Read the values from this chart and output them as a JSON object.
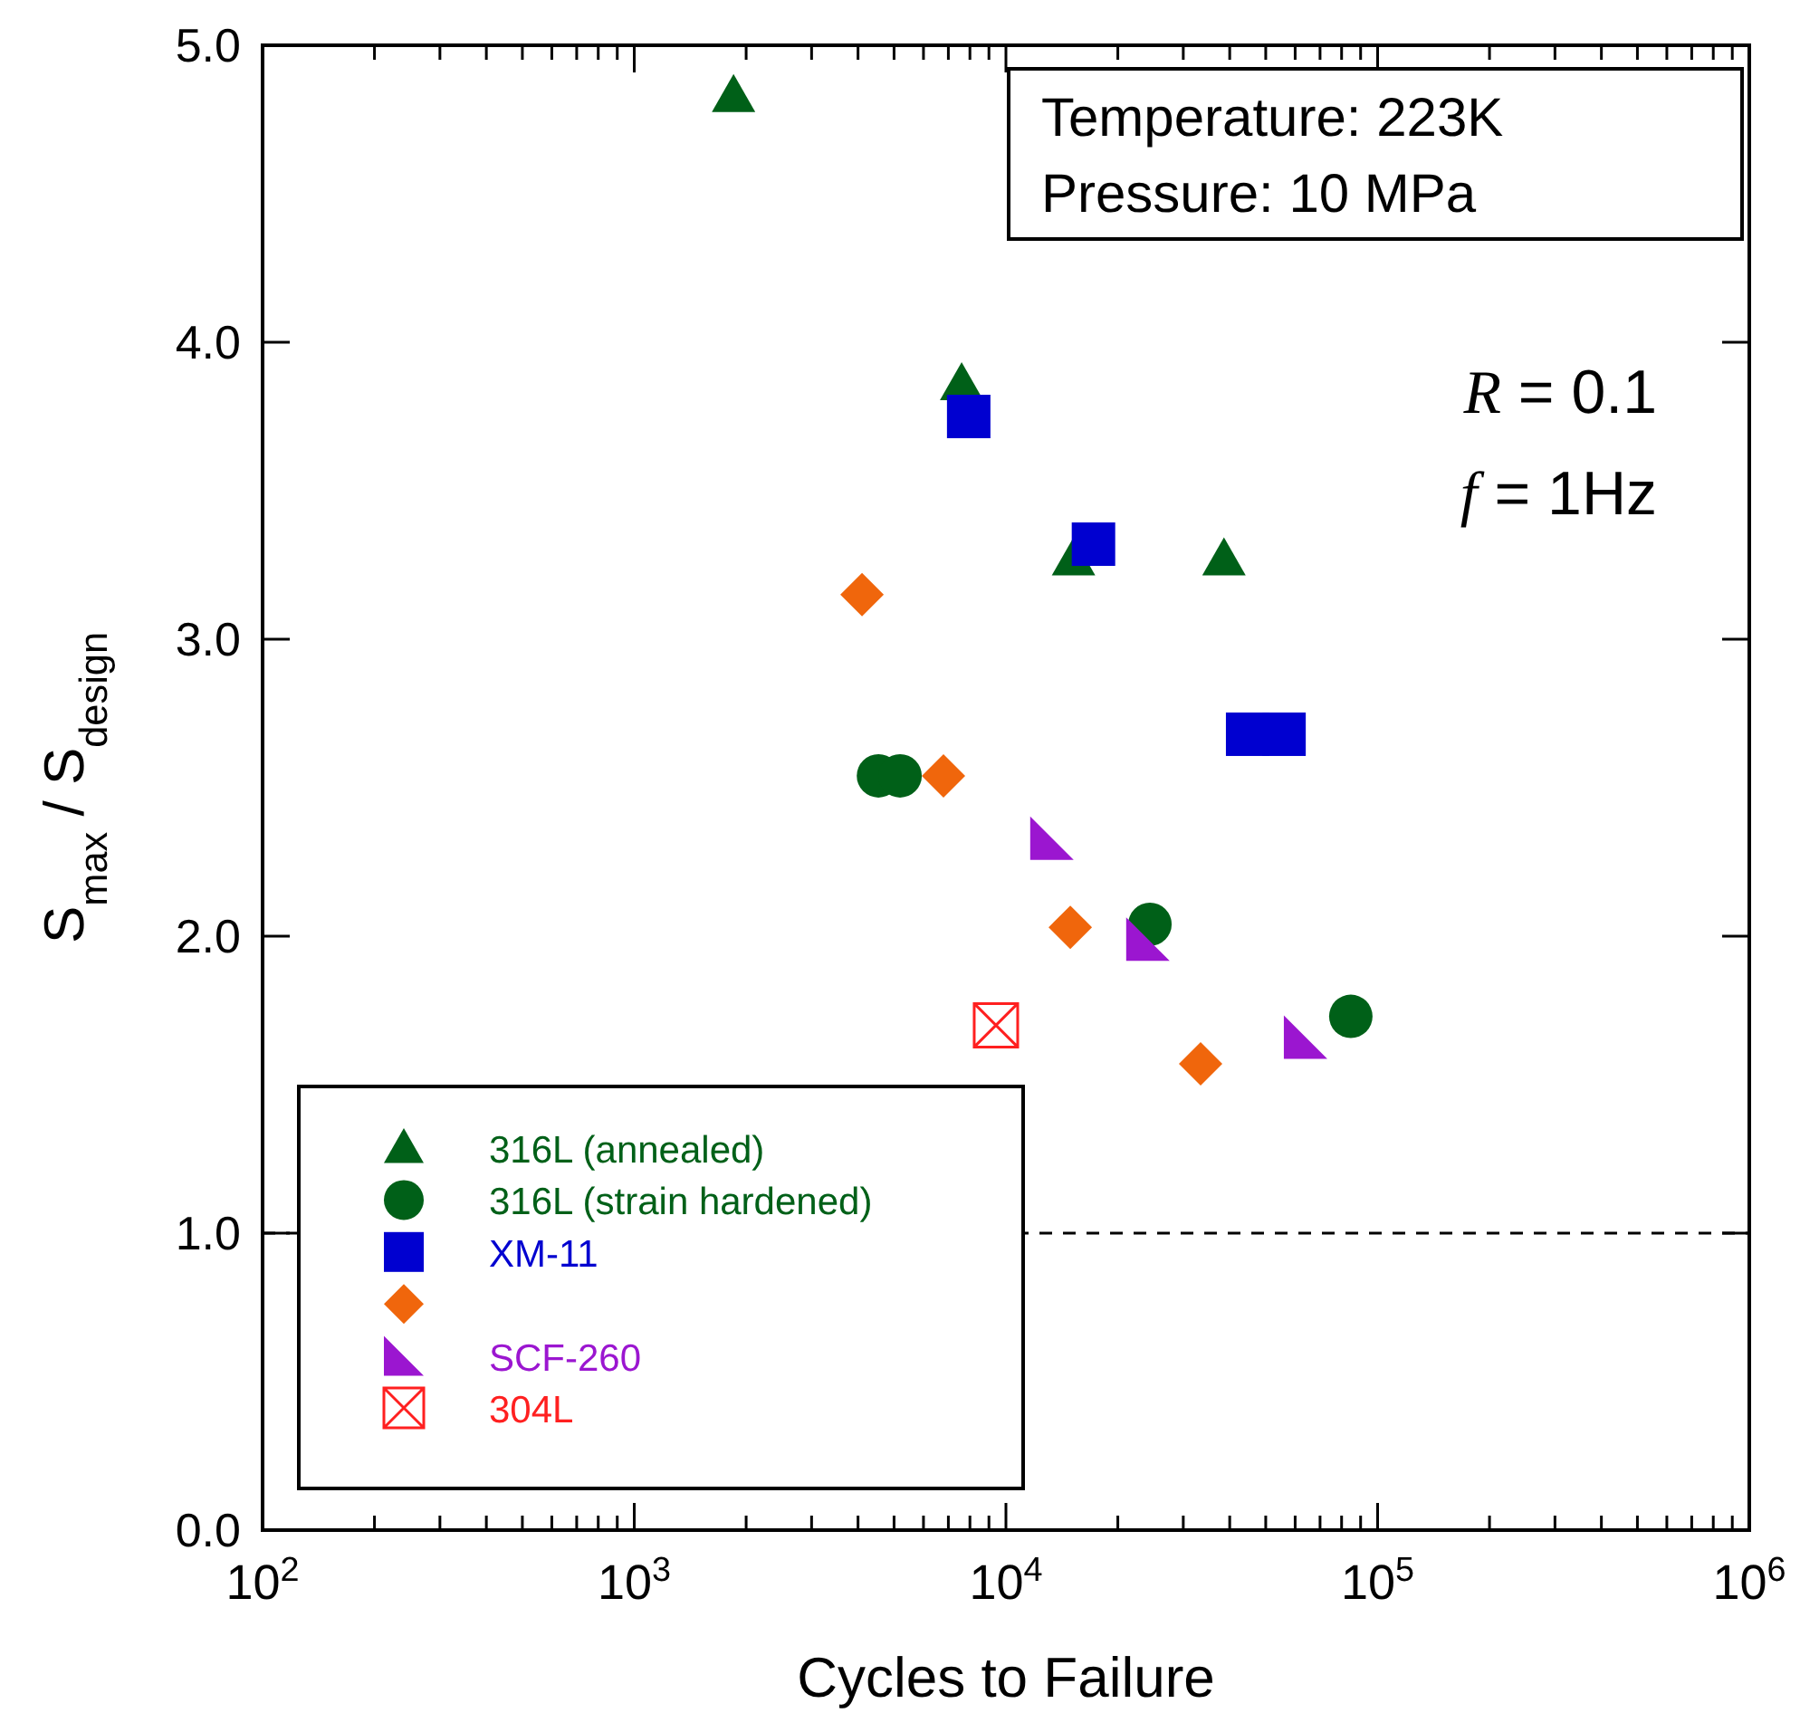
{
  "chart_data": {
    "type": "scatter",
    "xlabel": "Cycles to Failure",
    "ylabel": "S$_{max}$ / S$_{design}$",
    "log": "x",
    "xlim": [
      100,
      1000000
    ],
    "ylim": [
      0,
      5
    ],
    "xticks": [
      {
        "value": 100,
        "label": "10$^{2}$"
      },
      {
        "value": 200,
        "label": null
      },
      {
        "value": 300,
        "label": null
      },
      {
        "value": 400,
        "label": null
      },
      {
        "value": 500,
        "label": null
      },
      {
        "value": 600,
        "label": null
      },
      {
        "value": 700,
        "label": null
      },
      {
        "value": 800,
        "label": null
      },
      {
        "value": 900,
        "label": null
      },
      {
        "value": 1000,
        "label": "10$^{3}$"
      },
      {
        "value": 2000,
        "label": null
      },
      {
        "value": 3000,
        "label": null
      },
      {
        "value": 4000,
        "label": null
      },
      {
        "value": 5000,
        "label": null
      },
      {
        "value": 6000,
        "label": null
      },
      {
        "value": 7000,
        "label": null
      },
      {
        "value": 8000,
        "label": null
      },
      {
        "value": 9000,
        "label": null
      },
      {
        "value": 10000,
        "label": "10$^{4}$"
      },
      {
        "value": 20000,
        "label": null
      },
      {
        "value": 30000,
        "label": null
      },
      {
        "value": 40000,
        "label": null
      },
      {
        "value": 50000,
        "label": null
      },
      {
        "value": 60000,
        "label": null
      },
      {
        "value": 70000,
        "label": null
      },
      {
        "value": 80000,
        "label": null
      },
      {
        "value": 90000,
        "label": null
      },
      {
        "value": 100000,
        "label": "10$^{5}$"
      },
      {
        "value": 200000,
        "label": null
      },
      {
        "value": 300000,
        "label": null
      },
      {
        "value": 400000,
        "label": null
      },
      {
        "value": 500000,
        "label": null
      },
      {
        "value": 600000,
        "label": null
      },
      {
        "value": 700000,
        "label": null
      },
      {
        "value": 800000,
        "label": null
      },
      {
        "value": 900000,
        "label": null
      },
      {
        "value": 1000000,
        "label": "10$^{6}$"
      }
    ],
    "yticks": [
      {
        "value": 0,
        "label": "0.0"
      },
      {
        "value": 1,
        "label": "1.0"
      },
      {
        "value": 2,
        "label": "2.0"
      },
      {
        "value": 3,
        "label": "3.0"
      },
      {
        "value": 4,
        "label": "4.0"
      },
      {
        "value": 5,
        "label": "5.0"
      }
    ],
    "grid": false,
    "legend": "bottom left",
    "series": [
      {
        "name": "316L (annealed)",
        "color": "#006018",
        "marker": "triangle",
        "x": [
          1850,
          7600,
          15200,
          38600
        ],
        "values": [
          4.83,
          3.86,
          3.27,
          3.27
        ]
      },
      {
        "name": "316L (strain hardened)",
        "color": "#006018",
        "marker": "circle",
        "x": [
          4540,
          5190,
          24400,
          84700
        ],
        "values": [
          2.54,
          2.54,
          2.04,
          1.73
        ]
      },
      {
        "name": "XM-11",
        "color": "#0000d0",
        "marker": "square",
        "x": [
          7940,
          17200,
          44700,
          56000
        ],
        "values": [
          3.75,
          3.32,
          2.68,
          2.68
        ]
      },
      {
        "color": "#f0660c",
        "marker": "diamond",
        "x": [
          4100,
          6790,
          14900,
          33400
        ],
        "values": [
          3.15,
          2.54,
          2.03,
          1.57
        ]
      },
      {
        "name": "SCF-260",
        "color": "#9b16d0",
        "marker": "triangle",
        "x": [
          13300,
          24100,
          64000
        ],
        "values": [
          2.33,
          1.99,
          1.66
        ]
      },
      {
        "name": "304L",
        "color": "#ff2020",
        "marker": "cross",
        "x": [
          9400
        ],
        "values": [
          1.7
        ]
      }
    ],
    "ref_lines": [
      {
        "axis": "y",
        "value": 1,
        "line_style": "dashed",
        "color": "#000000"
      }
    ],
    "annotations": [
      "Temperature: 223K",
      "Pressure: 10 MPa",
      "R = 0.1",
      "f = 1Hz"
    ]
  }
}
